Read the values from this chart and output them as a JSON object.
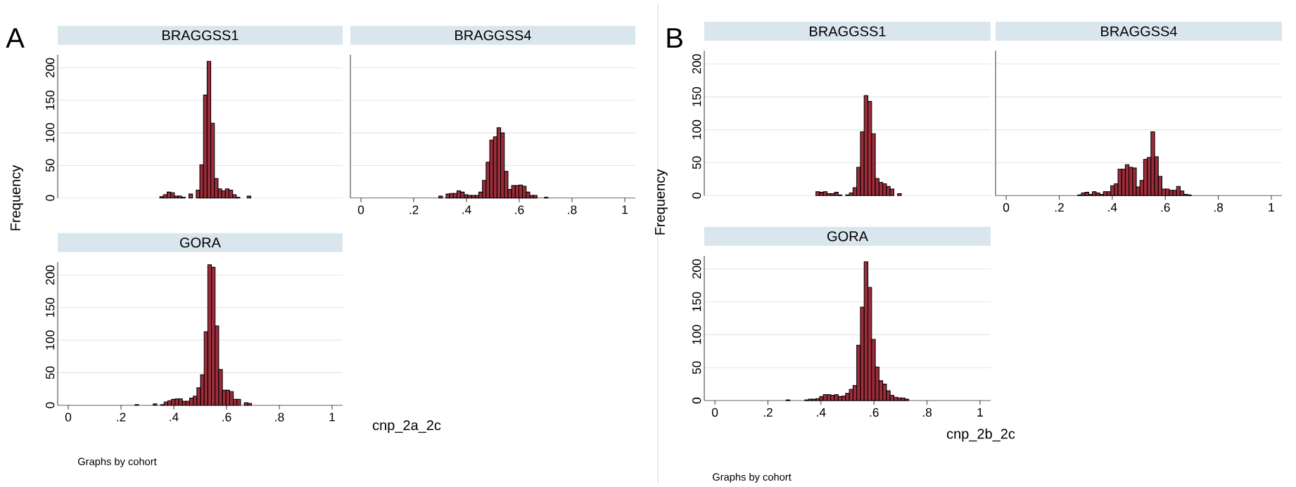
{
  "chart_data": [
    {
      "type": "histogram",
      "title": "BRAGGSS1",
      "ylabel": "Frequency",
      "annotations": [
        "A"
      ],
      "color": "#9b2d3a",
      "grid": "y",
      "tick_labels": "y",
      "xlim": [
        -0.04,
        1.04
      ],
      "ylim": [
        0,
        220
      ],
      "yticks": [
        0,
        50,
        100,
        150,
        200
      ],
      "bins": [
        0.347,
        0.3608,
        0.3746,
        0.3884,
        0.4022,
        0.416,
        0.4298,
        0.4436,
        0.4574,
        0.4712,
        0.485,
        0.4988,
        0.5126,
        0.5264,
        0.5402,
        0.554,
        0.5678,
        0.5816,
        0.5954,
        0.6092,
        0.623,
        0.6368,
        0.6506,
        0.6644,
        0.6782,
        0.692
      ],
      "values": [
        2,
        5,
        9,
        8,
        3,
        3,
        1,
        0,
        6,
        0,
        12,
        51,
        158,
        210,
        115,
        30,
        14,
        11,
        14,
        12,
        5,
        1,
        0,
        0,
        3
      ]
    },
    {
      "type": "histogram",
      "title": "BRAGGSS4",
      "color": "#9b2d3a",
      "grid": "y",
      "tick_labels": "x",
      "xlim": [
        -0.04,
        1.04
      ],
      "ylim": [
        0,
        220
      ],
      "yticks": [
        0,
        50,
        100,
        150,
        200
      ],
      "xticks": [
        0,
        {
          "value": 0.2,
          "label": ".2"
        },
        {
          "value": 0.4,
          "label": ".4"
        },
        {
          "value": 0.6,
          "label": ".6"
        },
        {
          "value": 0.8,
          "label": ".8"
        },
        1
      ],
      "bins": [
        0.295,
        0.3088,
        0.3226,
        0.3364,
        0.3502,
        0.364,
        0.3778,
        0.3916,
        0.4054,
        0.4192,
        0.433,
        0.4468,
        0.4606,
        0.4744,
        0.4882,
        0.502,
        0.5158,
        0.5296,
        0.5434,
        0.5572,
        0.571,
        0.5848,
        0.5986,
        0.6124,
        0.6262,
        0.64,
        0.6538,
        0.6676,
        0.6814,
        0.6952,
        0.709
      ],
      "values": [
        3,
        0,
        6,
        7,
        7,
        11,
        9,
        5,
        4,
        4,
        4,
        9,
        27,
        55,
        89,
        94,
        108,
        100,
        41,
        13,
        19,
        19,
        20,
        18,
        9,
        4,
        4,
        0,
        0,
        1
      ]
    },
    {
      "type": "histogram",
      "title": "GORA",
      "xlabel": "cnp_2a_2c",
      "annotations": [
        "Graphs by cohort"
      ],
      "color": "#9b2d3a",
      "grid": "y",
      "xlim": [
        -0.04,
        1.04
      ],
      "ylim": [
        0,
        220
      ],
      "yticks": [
        0,
        50,
        100,
        150,
        200
      ],
      "xticks": [
        0,
        {
          "value": 0.2,
          "label": ".2"
        },
        {
          "value": 0.4,
          "label": ".4"
        },
        {
          "value": 0.6,
          "label": ".6"
        },
        {
          "value": 0.8,
          "label": ".8"
        },
        1
      ],
      "bins": [
        0.253,
        0.2668,
        0.2806,
        0.2944,
        0.3082,
        0.322,
        0.3358,
        0.3496,
        0.3634,
        0.3772,
        0.391,
        0.4048,
        0.4186,
        0.4324,
        0.4462,
        0.46,
        0.4738,
        0.4876,
        0.5014,
        0.5152,
        0.529,
        0.5428,
        0.5566,
        0.5704,
        0.5842,
        0.598,
        0.6118,
        0.6256,
        0.6394,
        0.6532,
        0.667,
        0.6808,
        0.6946
      ],
      "values": [
        1,
        0,
        0,
        0,
        0,
        2,
        0,
        1,
        5,
        7,
        9,
        10,
        10,
        6,
        6,
        11,
        14,
        27,
        47,
        113,
        216,
        212,
        122,
        55,
        23,
        23,
        21,
        9,
        9,
        0,
        4,
        3
      ]
    },
    {
      "type": "histogram",
      "title": "BRAGGSS1",
      "ylabel": "Frequency",
      "annotations": [
        "B"
      ],
      "color": "#9b2d3a",
      "grid": "y",
      "tick_labels": "y",
      "xlim": [
        -0.04,
        1.04
      ],
      "ylim": [
        0,
        220
      ],
      "yticks": [
        0,
        50,
        100,
        150,
        200
      ],
      "bins": [
        0.381,
        0.395,
        0.409,
        0.423,
        0.437,
        0.451,
        0.465,
        0.479,
        0.493,
        0.507,
        0.521,
        0.535,
        0.549,
        0.563,
        0.577,
        0.591,
        0.605,
        0.619,
        0.633,
        0.647,
        0.661,
        0.675,
        0.689,
        0.703
      ],
      "values": [
        6,
        5,
        6,
        3,
        3,
        5,
        1,
        0,
        1,
        4,
        12,
        43,
        97,
        152,
        143,
        94,
        26,
        20,
        18,
        14,
        10,
        0,
        3
      ]
    },
    {
      "type": "histogram",
      "title": "BRAGGSS4",
      "color": "#9b2d3a",
      "grid": "y",
      "tick_labels": "x",
      "xlim": [
        -0.04,
        1.04
      ],
      "ylim": [
        0,
        220
      ],
      "yticks": [
        0,
        50,
        100,
        150,
        200
      ],
      "xticks": [
        0,
        {
          "value": 0.2,
          "label": ".2"
        },
        {
          "value": 0.4,
          "label": ".4"
        },
        {
          "value": 0.6,
          "label": ".6"
        },
        {
          "value": 0.8,
          "label": ".8"
        },
        1
      ],
      "bins": [
        0.27,
        0.2838,
        0.2976,
        0.3114,
        0.3252,
        0.339,
        0.3528,
        0.3666,
        0.3804,
        0.3942,
        0.408,
        0.4218,
        0.4356,
        0.4494,
        0.4632,
        0.477,
        0.4908,
        0.5046,
        0.5184,
        0.5322,
        0.546,
        0.5598,
        0.5736,
        0.5874,
        0.6012,
        0.615,
        0.6288,
        0.6426,
        0.6564,
        0.6702,
        0.684,
        0.6978
      ],
      "values": [
        1,
        4,
        5,
        2,
        6,
        4,
        2,
        6,
        6,
        15,
        18,
        40,
        40,
        47,
        43,
        42,
        13,
        23,
        55,
        58,
        97,
        59,
        29,
        10,
        10,
        8,
        8,
        14,
        7,
        2,
        1
      ]
    },
    {
      "type": "histogram",
      "title": "GORA",
      "xlabel": "cnp_2b_2c",
      "annotations": [
        "Graphs by cohort"
      ],
      "color": "#9b2d3a",
      "grid": "y",
      "xlim": [
        -0.04,
        1.04
      ],
      "ylim": [
        0,
        220
      ],
      "yticks": [
        0,
        50,
        100,
        150,
        200
      ],
      "xticks": [
        0,
        {
          "value": 0.2,
          "label": ".2"
        },
        {
          "value": 0.4,
          "label": ".4"
        },
        {
          "value": 0.6,
          "label": ".6"
        },
        {
          "value": 0.8,
          "label": ".8"
        },
        1
      ],
      "bins": [
        0.269,
        0.283,
        0.297,
        0.311,
        0.325,
        0.339,
        0.353,
        0.367,
        0.381,
        0.395,
        0.409,
        0.423,
        0.437,
        0.451,
        0.465,
        0.479,
        0.493,
        0.507,
        0.521,
        0.535,
        0.549,
        0.563,
        0.577,
        0.591,
        0.605,
        0.619,
        0.633,
        0.647,
        0.661,
        0.675,
        0.689,
        0.703,
        0.717,
        0.731
      ],
      "values": [
        1,
        0,
        0,
        0,
        0,
        1,
        2,
        2,
        3,
        6,
        9,
        9,
        8,
        9,
        6,
        7,
        11,
        17,
        23,
        84,
        142,
        211,
        172,
        93,
        51,
        30,
        25,
        15,
        8,
        5,
        4,
        4,
        2
      ]
    }
  ]
}
